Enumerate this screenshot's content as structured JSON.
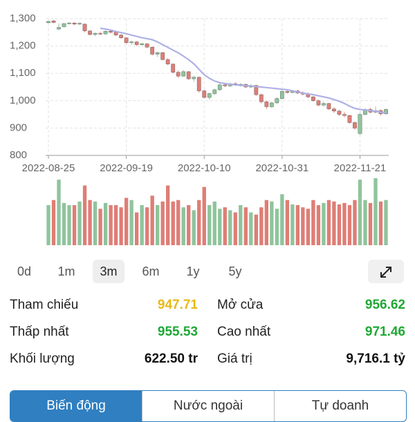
{
  "chart_data": {
    "type": "candlestick",
    "categories": [
      "2022-08-25",
      null,
      null,
      null,
      null,
      null,
      null,
      null,
      null,
      null,
      null,
      null,
      null,
      null,
      null,
      "2022-09-19",
      null,
      null,
      null,
      null,
      null,
      null,
      null,
      null,
      null,
      null,
      null,
      null,
      null,
      null,
      "2022-10-10",
      null,
      null,
      null,
      null,
      null,
      null,
      null,
      null,
      null,
      null,
      null,
      null,
      null,
      null,
      "2022-10-31",
      null,
      null,
      null,
      null,
      null,
      null,
      null,
      null,
      null,
      null,
      null,
      null,
      null,
      null,
      "2022-11-21",
      null,
      null,
      null,
      null,
      null
    ],
    "ohlc": [
      [
        1285,
        1292,
        1282,
        1290
      ],
      [
        1292,
        1295,
        1284,
        1286
      ],
      [
        1262,
        1283,
        1258,
        1268
      ],
      [
        1270,
        1284,
        1268,
        1282
      ],
      [
        1282,
        1288,
        1278,
        1284
      ],
      [
        1284,
        1287,
        1276,
        1280
      ],
      [
        1280,
        1286,
        1276,
        1283
      ],
      [
        1280,
        1282,
        1250,
        1255
      ],
      [
        1255,
        1258,
        1238,
        1242
      ],
      [
        1242,
        1250,
        1236,
        1246
      ],
      [
        1246,
        1252,
        1240,
        1244
      ],
      [
        1244,
        1258,
        1242,
        1254
      ],
      [
        1254,
        1260,
        1246,
        1250
      ],
      [
        1250,
        1252,
        1236,
        1240
      ],
      [
        1240,
        1244,
        1226,
        1230
      ],
      [
        1230,
        1232,
        1208,
        1212
      ],
      [
        1212,
        1220,
        1204,
        1215
      ],
      [
        1215,
        1218,
        1200,
        1205
      ],
      [
        1205,
        1212,
        1200,
        1208
      ],
      [
        1208,
        1210,
        1192,
        1196
      ],
      [
        1196,
        1198,
        1166,
        1170
      ],
      [
        1170,
        1180,
        1160,
        1176
      ],
      [
        1176,
        1178,
        1148,
        1150
      ],
      [
        1150,
        1156,
        1130,
        1134
      ],
      [
        1134,
        1136,
        1100,
        1104
      ],
      [
        1104,
        1110,
        1084,
        1090
      ],
      [
        1090,
        1112,
        1088,
        1106
      ],
      [
        1106,
        1108,
        1076,
        1080
      ],
      [
        1080,
        1090,
        1070,
        1086
      ],
      [
        1086,
        1088,
        1030,
        1036
      ],
      [
        1036,
        1040,
        1008,
        1012
      ],
      [
        1012,
        1030,
        1004,
        1026
      ],
      [
        1026,
        1044,
        1020,
        1040
      ],
      [
        1040,
        1062,
        1036,
        1058
      ],
      [
        1058,
        1064,
        1050,
        1054
      ],
      [
        1054,
        1066,
        1050,
        1062
      ],
      [
        1062,
        1068,
        1054,
        1058
      ],
      [
        1058,
        1064,
        1052,
        1060
      ],
      [
        1060,
        1062,
        1046,
        1050
      ],
      [
        1050,
        1060,
        1046,
        1056
      ],
      [
        1056,
        1058,
        1018,
        1022
      ],
      [
        1022,
        1026,
        990,
        996
      ],
      [
        996,
        1000,
        970,
        978
      ],
      [
        978,
        996,
        974,
        992
      ],
      [
        992,
        1012,
        988,
        1008
      ],
      [
        1008,
        1040,
        1004,
        1034
      ],
      [
        1034,
        1042,
        1026,
        1030
      ],
      [
        1030,
        1040,
        1026,
        1036
      ],
      [
        1036,
        1040,
        1024,
        1028
      ],
      [
        1028,
        1034,
        1020,
        1024
      ],
      [
        1024,
        1030,
        1010,
        1014
      ],
      [
        1014,
        1018,
        996,
        1000
      ],
      [
        1000,
        1004,
        980,
        984
      ],
      [
        984,
        996,
        978,
        990
      ],
      [
        990,
        992,
        966,
        970
      ],
      [
        970,
        976,
        956,
        962
      ],
      [
        962,
        966,
        944,
        950
      ],
      [
        950,
        958,
        940,
        946
      ],
      [
        946,
        948,
        916,
        920
      ],
      [
        920,
        924,
        894,
        900
      ],
      [
        880,
        955,
        874,
        950
      ],
      [
        950,
        972,
        946,
        968
      ],
      [
        968,
        974,
        954,
        958
      ],
      [
        958,
        978,
        954,
        964
      ],
      [
        964,
        968,
        946,
        952
      ],
      [
        952,
        972,
        948,
        968
      ]
    ],
    "ma": [
      null,
      null,
      null,
      null,
      null,
      null,
      null,
      null,
      null,
      null,
      1265,
      1262,
      1258,
      1253,
      1249,
      1245,
      1240,
      1235,
      1230,
      1227,
      1223,
      1215,
      1205,
      1195,
      1185,
      1175,
      1163,
      1150,
      1135,
      1115,
      1095,
      1082,
      1072,
      1066,
      1063,
      1060,
      1058,
      1056,
      1055,
      1054,
      1052,
      1050,
      1048,
      1046,
      1044,
      1042,
      1040,
      1036,
      1032,
      1028,
      1025,
      1022,
      1018,
      1014,
      1010,
      1004,
      998,
      990,
      980,
      972,
      968,
      966,
      964,
      962,
      958,
      955
    ],
    "volume": [
      55,
      62,
      90,
      58,
      55,
      55,
      60,
      82,
      62,
      60,
      50,
      58,
      55,
      55,
      52,
      65,
      62,
      45,
      55,
      52,
      68,
      55,
      60,
      82,
      60,
      62,
      52,
      55,
      48,
      62,
      80,
      55,
      60,
      50,
      52,
      48,
      45,
      55,
      52,
      45,
      42,
      52,
      62,
      60,
      50,
      70,
      62,
      56,
      55,
      52,
      50,
      62,
      55,
      58,
      62,
      60,
      56,
      58,
      55,
      62,
      90,
      62,
      58,
      92,
      60,
      62
    ],
    "up_color": "#8fc49c",
    "down_color": "#de7e76",
    "ma_color": "#aeb0e6",
    "ylim": [
      800,
      1300
    ],
    "yticks": [
      {
        "value": 800,
        "label": "800"
      },
      900,
      {
        "value": 1000,
        "label": "1,000"
      },
      {
        "value": 1100,
        "label": "1,100"
      },
      {
        "value": 1200,
        "label": "1,200"
      },
      {
        "value": 1300,
        "label": "1,300"
      }
    ],
    "grid": true
  },
  "periods": [
    "0d",
    "1m",
    "3m",
    "6m",
    "1y",
    "5y"
  ],
  "selected_period": 2,
  "stats": [
    {
      "label": "Tham chiếu",
      "value": "947.71",
      "color": "#e8b913"
    },
    {
      "label": "Mở cửa",
      "value": "956.62",
      "color": "#1fa834"
    },
    {
      "label": "Thấp nhất",
      "value": "955.53",
      "color": "#1fa834"
    },
    {
      "label": "Cao nhất",
      "value": "971.46",
      "color": "#1fa834"
    },
    {
      "label": "Khối lượng",
      "value": "622.50 tr",
      "color": "#111111"
    },
    {
      "label": "Giá trị",
      "value": "9,716.1 tỷ",
      "color": "#111111"
    }
  ],
  "tabs": [
    "Biến động",
    "Nước ngoài",
    "Tự doanh"
  ],
  "selected_tab": 0
}
